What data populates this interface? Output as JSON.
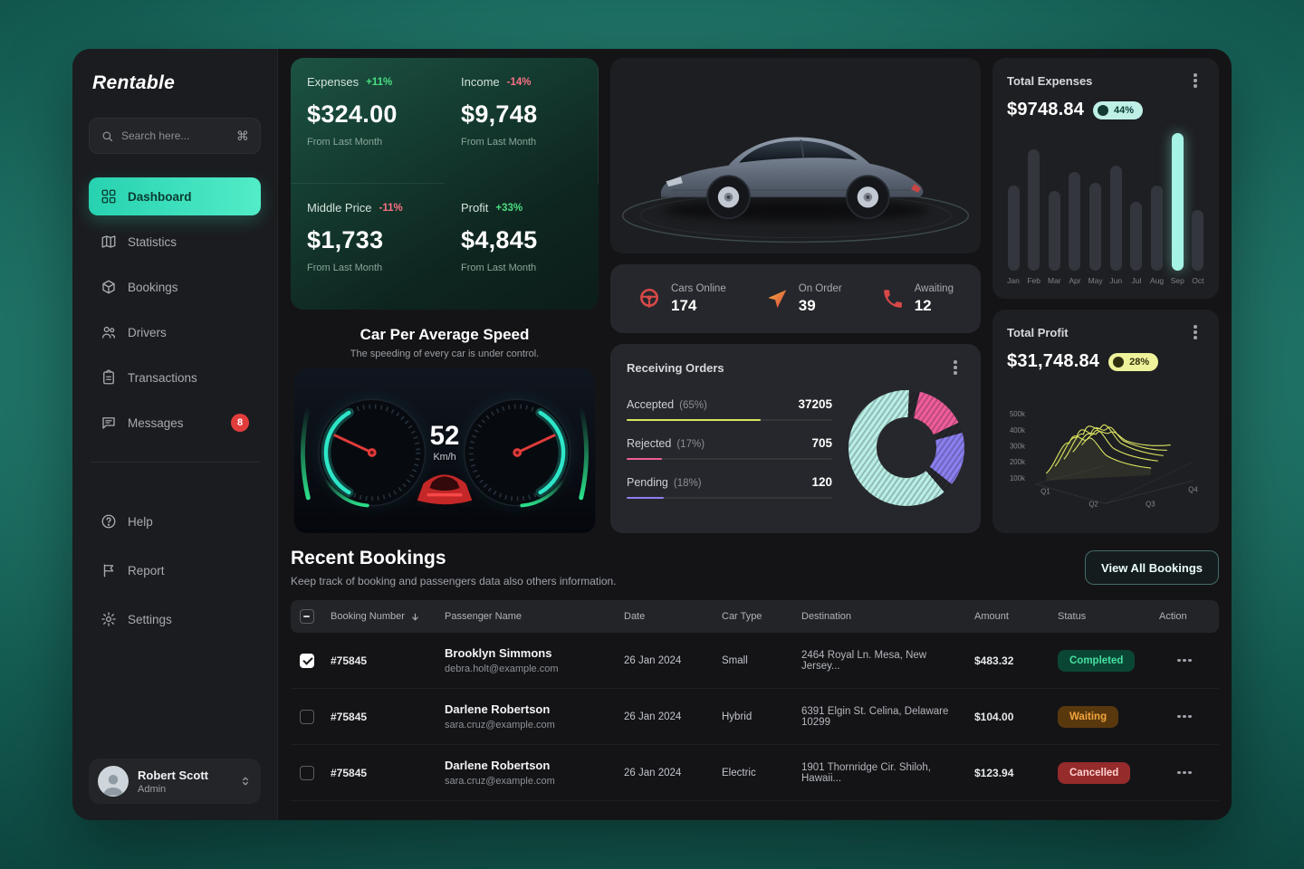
{
  "palette": {
    "accent_teal": "#3ce8c5",
    "positive_green": "#4ade80",
    "negative_red": "#fb7185",
    "expenses_badge_bg": "#bff0e7",
    "profit_badge_bg": "#eef29a",
    "status_completed": "#45e0a1",
    "status_waiting": "#f2a63c",
    "status_cancelled": "#ff9d9d",
    "bar_accent": "#a5f3e4",
    "donut_accepted": "#b9efe6",
    "donut_rejected": "#ef5d9a",
    "donut_pending": "#8b7ff0"
  },
  "window": {
    "brand": "Rentable"
  },
  "sidebar": {
    "search": {
      "placeholder": "Search here...",
      "shortcut": "⌘"
    },
    "nav": [
      {
        "label": "Dashboard",
        "active": "true"
      },
      {
        "label": "Statistics",
        "active": "false"
      },
      {
        "label": "Bookings",
        "active": "false"
      },
      {
        "label": "Drivers",
        "active": "false"
      },
      {
        "label": "Transactions",
        "active": "false"
      },
      {
        "label": "Messages",
        "active": "false",
        "badge": "8"
      }
    ],
    "nav_secondary": [
      {
        "label": "Help"
      },
      {
        "label": "Report"
      },
      {
        "label": "Settings"
      }
    ],
    "user": {
      "name": "Robert Scott",
      "role": "Admin"
    }
  },
  "kpis": [
    {
      "label": "Expenses",
      "delta": "+11%",
      "trend": "up",
      "value": "$324.00",
      "caption": "From Last Month"
    },
    {
      "label": "Income",
      "delta": "-14%",
      "trend": "down",
      "value": "$9,748",
      "caption": "From Last Month"
    },
    {
      "label": "Middle Price",
      "delta": "-11%",
      "trend": "down",
      "value": "$1,733",
      "caption": "From Last Month"
    },
    {
      "label": "Profit",
      "delta": "+33%",
      "trend": "up",
      "value": "$4,845",
      "caption": "From Last Month"
    }
  ],
  "speed_panel": {
    "title": "Car Per Average Speed",
    "subtitle": "The speeding of every car is under control.",
    "speed": "52",
    "unit": "Km/h"
  },
  "fleet": [
    {
      "label": "Cars Online",
      "value": "174",
      "icon": "steering-wheel-icon"
    },
    {
      "label": "On Order",
      "value": "39",
      "icon": "order-cursor-icon"
    },
    {
      "label": "Awaiting",
      "value": "12",
      "icon": "phone-icon"
    }
  ],
  "receiving_orders": {
    "title": "Receiving Orders",
    "rows": [
      {
        "label": "Accepted",
        "pct": "(65%)",
        "value": "37205",
        "line_color": "#d7e861",
        "line_width": "65%"
      },
      {
        "label": "Rejected",
        "pct": "(17%)",
        "value": "705",
        "line_color": "#ef5d9a",
        "line_width": "17%"
      },
      {
        "label": "Pending",
        "pct": "(18%)",
        "value": "120",
        "line_color": "#8b7ff0",
        "line_width": "18%"
      }
    ],
    "donut": {
      "type": "donut",
      "segments": [
        {
          "name": "Rejected",
          "pct": 17,
          "color": "#ef5d9a"
        },
        {
          "name": "Pending",
          "pct": 18,
          "color": "#8b7ff0"
        },
        {
          "name": "Accepted",
          "pct": 65,
          "color": "#b9efe6"
        }
      ]
    }
  },
  "expenses_panel": {
    "title": "Total Expenses",
    "value": "$9748.84",
    "badge": "44%",
    "chart": {
      "type": "bar",
      "bars": [
        {
          "month": "Jan",
          "value": 62
        },
        {
          "month": "Feb",
          "value": 88
        },
        {
          "month": "Mar",
          "value": 58
        },
        {
          "month": "Apr",
          "value": 72
        },
        {
          "month": "May",
          "value": 64
        },
        {
          "month": "Jun",
          "value": 76
        },
        {
          "month": "Jul",
          "value": 50
        },
        {
          "month": "Aug",
          "value": 62
        },
        {
          "month": "Sep",
          "value": 100,
          "accent": true
        },
        {
          "month": "Oct",
          "value": 44
        }
      ]
    }
  },
  "profit_panel": {
    "title": "Total Profit",
    "value": "$31,748.84",
    "badge": "28%",
    "chart": {
      "type": "ridge-3d-area",
      "y_ticks": [
        "500k",
        "400k",
        "300k",
        "200k",
        "100k"
      ],
      "x_ticks": [
        "Q1",
        "Q2",
        "Q3",
        "Q4"
      ]
    }
  },
  "bookings": {
    "title": "Recent Bookings",
    "subtitle": "Keep track of booking and passengers data also others information.",
    "view_all": "View All Bookings",
    "columns": [
      "Booking Number",
      "Passenger Name",
      "Date",
      "Car Type",
      "Destination",
      "Amount",
      "Status",
      "Action"
    ],
    "rows": [
      {
        "checked": "true",
        "id": "#75845",
        "name": "Brooklyn Simmons",
        "email": "debra.holt@example.com",
        "date": "26 Jan 2024",
        "car_type": "Small",
        "destination": "2464 Royal Ln. Mesa, New Jersey...",
        "amount": "$483.32",
        "status": "Completed",
        "status_key": "completed"
      },
      {
        "checked": "false",
        "id": "#75845",
        "name": "Darlene Robertson",
        "email": "sara.cruz@example.com",
        "date": "26 Jan 2024",
        "car_type": "Hybrid",
        "destination": "6391 Elgin St. Celina, Delaware 10299",
        "amount": "$104.00",
        "status": "Waiting",
        "status_key": "waiting"
      },
      {
        "checked": "false",
        "id": "#75845",
        "name": "Darlene Robertson",
        "email": "sara.cruz@example.com",
        "date": "26 Jan 2024",
        "car_type": "Electric",
        "destination": "1901 Thornridge Cir. Shiloh, Hawaii...",
        "amount": "$123.94",
        "status": "Cancelled",
        "status_key": "cancelled"
      }
    ]
  }
}
